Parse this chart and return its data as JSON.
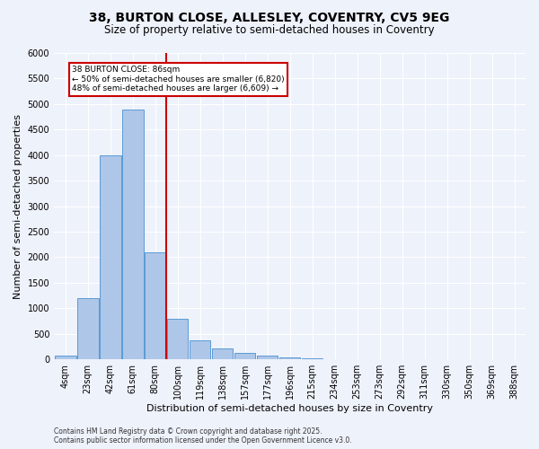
{
  "title_line1": "38, BURTON CLOSE, ALLESLEY, COVENTRY, CV5 9EG",
  "title_line2": "Size of property relative to semi-detached houses in Coventry",
  "xlabel": "Distribution of semi-detached houses by size in Coventry",
  "ylabel": "Number of semi-detached properties",
  "categories": [
    "4sqm",
    "23sqm",
    "42sqm",
    "61sqm",
    "80sqm",
    "100sqm",
    "119sqm",
    "138sqm",
    "157sqm",
    "177sqm",
    "196sqm",
    "215sqm",
    "234sqm",
    "253sqm",
    "273sqm",
    "292sqm",
    "311sqm",
    "330sqm",
    "350sqm",
    "369sqm",
    "388sqm"
  ],
  "values": [
    75,
    1200,
    4000,
    4900,
    2100,
    800,
    380,
    220,
    130,
    80,
    40,
    20,
    10,
    5,
    2,
    1,
    0,
    0,
    0,
    0,
    0
  ],
  "bar_color": "#aec6e8",
  "bar_edge_color": "#5b9bd5",
  "vline_color": "#cc0000",
  "vline_x_index": 4.5,
  "annotation_title": "38 BURTON CLOSE: 86sqm",
  "annotation_line2": "← 50% of semi-detached houses are smaller (6,820)",
  "annotation_line3": "48% of semi-detached houses are larger (6,609) →",
  "annotation_box_color": "#cc0000",
  "ylim": [
    0,
    6000
  ],
  "yticks": [
    0,
    500,
    1000,
    1500,
    2000,
    2500,
    3000,
    3500,
    4000,
    4500,
    5000,
    5500,
    6000
  ],
  "footer_line1": "Contains HM Land Registry data © Crown copyright and database right 2025.",
  "footer_line2": "Contains public sector information licensed under the Open Government Licence v3.0.",
  "bg_color": "#eef2fb",
  "plot_bg_color": "#eef2fb",
  "grid_color": "#ffffff",
  "title_fontsize": 10,
  "subtitle_fontsize": 8.5,
  "axis_label_fontsize": 8,
  "tick_fontsize": 7,
  "annotation_fontsize": 6.5,
  "footer_fontsize": 5.5
}
